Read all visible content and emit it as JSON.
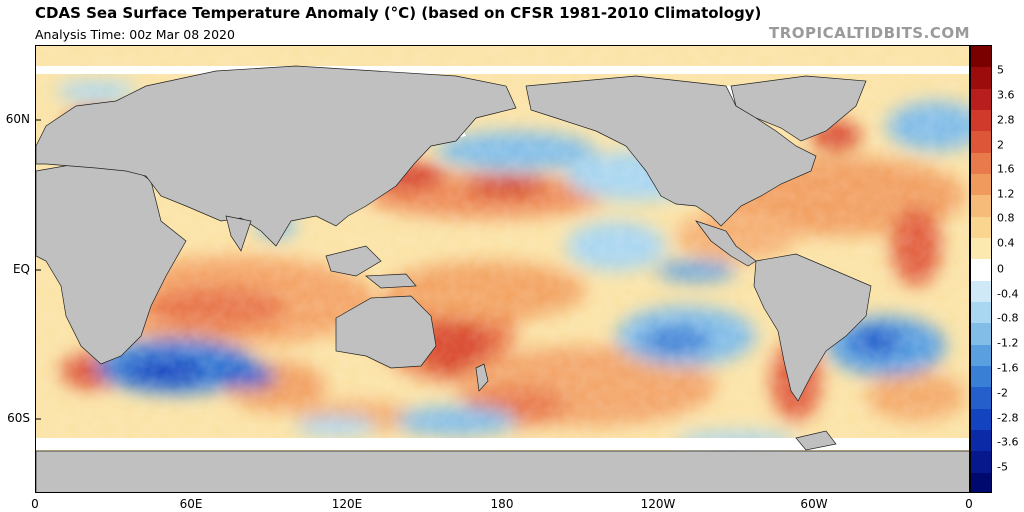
{
  "header": {
    "title": "CDAS Sea Surface Temperature Anomaly (°C) (based on CFSR 1981-2010 Climatology)",
    "analysis_time": "Analysis Time: 00z Mar 08 2020",
    "brand": "TROPICALTIDBITS.COM"
  },
  "map": {
    "lat_labels": [
      "60N",
      "EQ",
      "60S"
    ],
    "lon_labels": [
      "0",
      "60E",
      "120E",
      "180",
      "120W",
      "60W",
      "0"
    ],
    "land_color": "#c0c0c0",
    "ice_color": "#ffffff"
  },
  "colorbar": {
    "labels": [
      "5",
      "3.6",
      "2.8",
      "2",
      "1.6",
      "1.2",
      "0.8",
      "0.4",
      "0",
      "-0.4",
      "-0.8",
      "-1.2",
      "-1.6",
      "-2",
      "-2.8",
      "-3.6",
      "-5"
    ],
    "colors": [
      "#7a0000",
      "#9c0c0c",
      "#b81e1e",
      "#cf3a2a",
      "#de5638",
      "#e97a4c",
      "#f19a5e",
      "#f6bb78",
      "#f9d590",
      "#fbe9b0",
      "#ffffff",
      "#cfe9f7",
      "#a9d6f0",
      "#82bde8",
      "#5a9fe0",
      "#3a7fd6",
      "#245fcc",
      "#1443bf",
      "#0a2aa8",
      "#06188c",
      "#000a6e"
    ]
  }
}
